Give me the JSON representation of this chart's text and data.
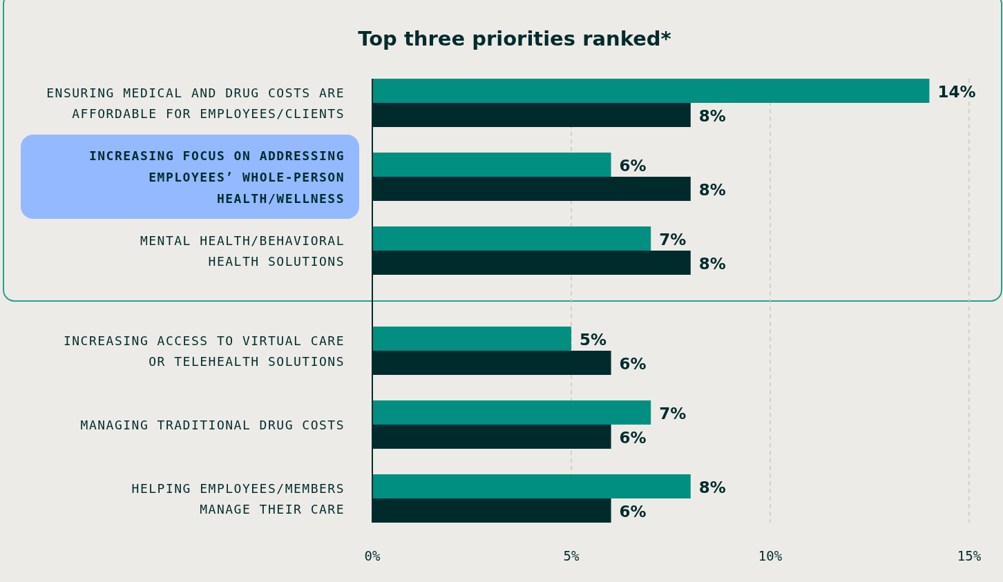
{
  "chart_data": {
    "type": "bar",
    "orientation": "horizontal",
    "title": "Top three priorities ranked*",
    "categories": [
      "ENSURING MEDICAL AND DRUG COSTS ARE\nAFFORDABLE FOR EMPLOYEES/CLIENTS",
      "INCREASING FOCUS ON ADDRESSING\nEMPLOYEES’ WHOLE-PERSON\nHEALTH/WELLNESS",
      "MENTAL HEALTH/BEHAVIORAL\nHEALTH SOLUTIONS",
      "INCREASING ACCESS TO VIRTUAL CARE\nOR TELEHEALTH SOLUTIONS",
      "MANAGING TRADITIONAL DRUG COSTS",
      "HELPING EMPLOYEES/MEMBERS\nMANAGE THEIR CARE"
    ],
    "series": [
      {
        "color": "#008f80",
        "values": [
          14,
          6,
          7,
          5,
          7,
          8
        ],
        "value_labels": [
          "14%",
          "6%",
          "7%",
          "5%",
          "7%",
          "8%"
        ]
      },
      {
        "color": "#002b2d",
        "values": [
          8,
          8,
          8,
          6,
          6,
          6
        ],
        "value_labels": [
          "8%",
          "8%",
          "8%",
          "6%",
          "6%",
          "6%"
        ]
      }
    ],
    "xlim": [
      0,
      15
    ],
    "xticks": [
      {
        "value": 0,
        "label": "0%"
      },
      {
        "value": 5,
        "label": "5%"
      },
      {
        "value": 10,
        "label": "10%"
      },
      {
        "value": 15,
        "label": "15%"
      }
    ],
    "grid": "x"
  }
}
